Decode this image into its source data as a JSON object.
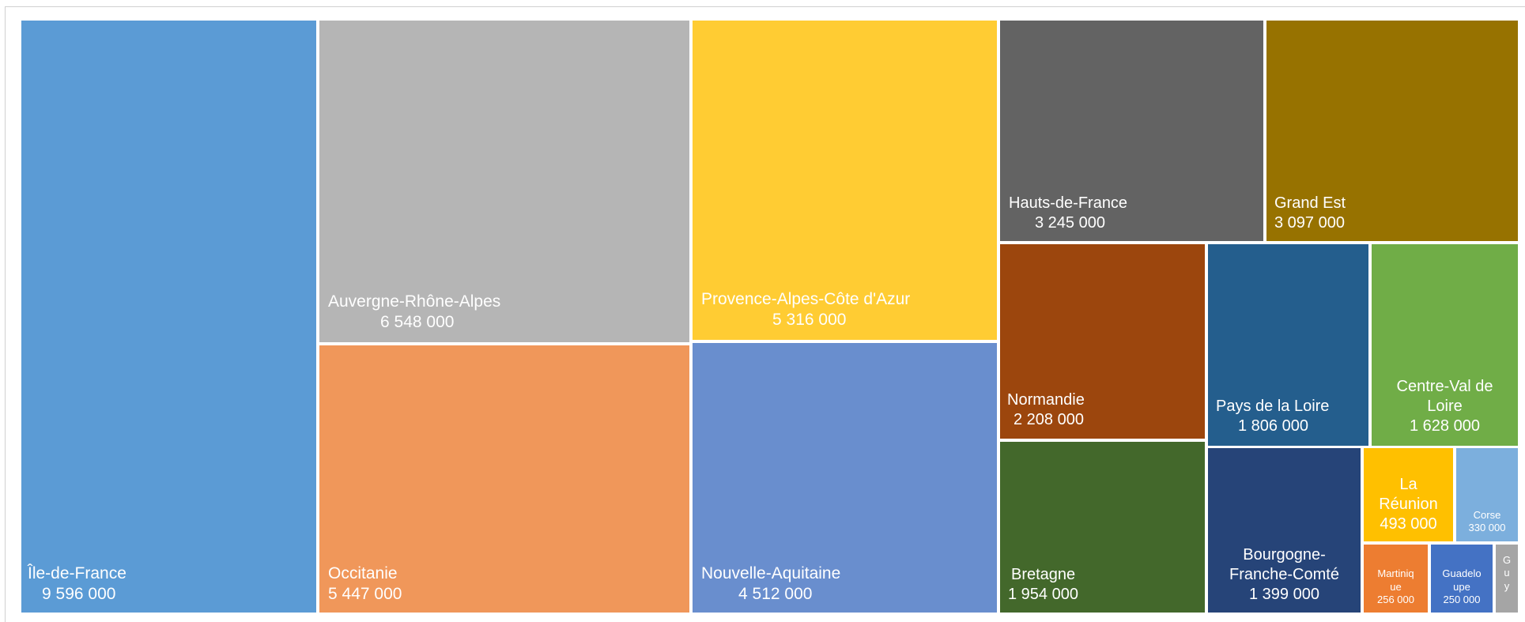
{
  "chart_data": {
    "type": "treemap",
    "items": [
      {
        "name": "Île-de-France",
        "value_label": "9 596 000",
        "value": 9596000,
        "color": "#5B9BD5"
      },
      {
        "name": "Auvergne-Rhône-Alpes",
        "value_label": "6 548 000",
        "value": 6548000,
        "color": "#B5B5B5"
      },
      {
        "name": "Occitanie",
        "value_label": "5 447 000",
        "value": 5447000,
        "color": "#F0975A"
      },
      {
        "name": "Provence-Alpes-Côte d'Azur",
        "value_label": "5 316 000",
        "value": 5316000,
        "color": "#FFCC33"
      },
      {
        "name": "Nouvelle-Aquitaine",
        "value_label": "4 512 000",
        "value": 4512000,
        "color": "#698ECE"
      },
      {
        "name": "Hauts-de-France",
        "value_label": "3 245 000",
        "value": 3245000,
        "color": "#636363"
      },
      {
        "name": "Grand Est",
        "value_label": "3 097 000",
        "value": 3097000,
        "color": "#977200"
      },
      {
        "name": "Normandie",
        "value_label": "2 208 000",
        "value": 2208000,
        "color": "#9C460D"
      },
      {
        "name": "Bretagne",
        "value_label": "1 954 000",
        "value": 1954000,
        "color": "#43682B"
      },
      {
        "name": "Pays de la Loire",
        "value_label": "1 806 000",
        "value": 1806000,
        "color": "#245E8D"
      },
      {
        "name": "Centre-Val de Loire",
        "value_label": "1 628 000",
        "value": 1628000,
        "color": "#70AD47"
      },
      {
        "name": "Bourgogne-Franche-Comté",
        "value_label": "1 399 000",
        "value": 1399000,
        "color": "#264478"
      },
      {
        "name": "La Réunion",
        "value_label": "493 000",
        "value": 493000,
        "color": "#FFC000"
      },
      {
        "name": "Corse",
        "value_label": "330 000",
        "value": 330000,
        "color": "#7CAFDD"
      },
      {
        "name": "Martinique",
        "value_label": "256 000",
        "value": 256000,
        "color": "#ED7D31"
      },
      {
        "name": "Guadeloupe",
        "value_label": "250 000",
        "value": 250000,
        "color": "#4472C4"
      },
      {
        "name": "Guyane",
        "value_label": "",
        "value": 0,
        "color": "#A5A5A5"
      }
    ]
  },
  "labels": {
    "idf": {
      "l1": "Île-de-France",
      "v": "9 596 000"
    },
    "ara": {
      "l1": "Auvergne-Rhône-Alpes",
      "v": "6 548 000"
    },
    "occ": {
      "l1": "Occitanie",
      "v": "5 447 000"
    },
    "paca": {
      "l1": "Provence-Alpes-Côte d'Azur",
      "v": "5 316 000"
    },
    "naq": {
      "l1": "Nouvelle-Aquitaine",
      "v": "4 512 000"
    },
    "hdf": {
      "l1": "Hauts-de-France",
      "v": "3 245 000"
    },
    "ges": {
      "l1": "Grand Est",
      "v": "3 097 000"
    },
    "nor": {
      "l1": "Normandie",
      "v": "2 208 000"
    },
    "bre": {
      "l1": "Bretagne",
      "v": "1 954 000"
    },
    "pdl": {
      "l1": "Pays de la Loire",
      "v": "1 806 000"
    },
    "cvl": {
      "l1": "Centre-Val de",
      "l2": "Loire",
      "v": "1 628 000"
    },
    "bfc": {
      "l1": "Bourgogne-",
      "l2": "Franche-Comté",
      "v": "1 399 000"
    },
    "reu": {
      "l1": "La",
      "l2": "Réunion",
      "v": "493 000"
    },
    "cor": {
      "l1": "Corse",
      "v": "330 000"
    },
    "mar": {
      "l1": "Martiniq",
      "l2": "ue",
      "v": "256 000"
    },
    "gua": {
      "l1": "Guadelo",
      "l2": "upe",
      "v": "250 000"
    },
    "guy": {
      "l1": "G",
      "l2": "u",
      "l3": "y"
    }
  }
}
